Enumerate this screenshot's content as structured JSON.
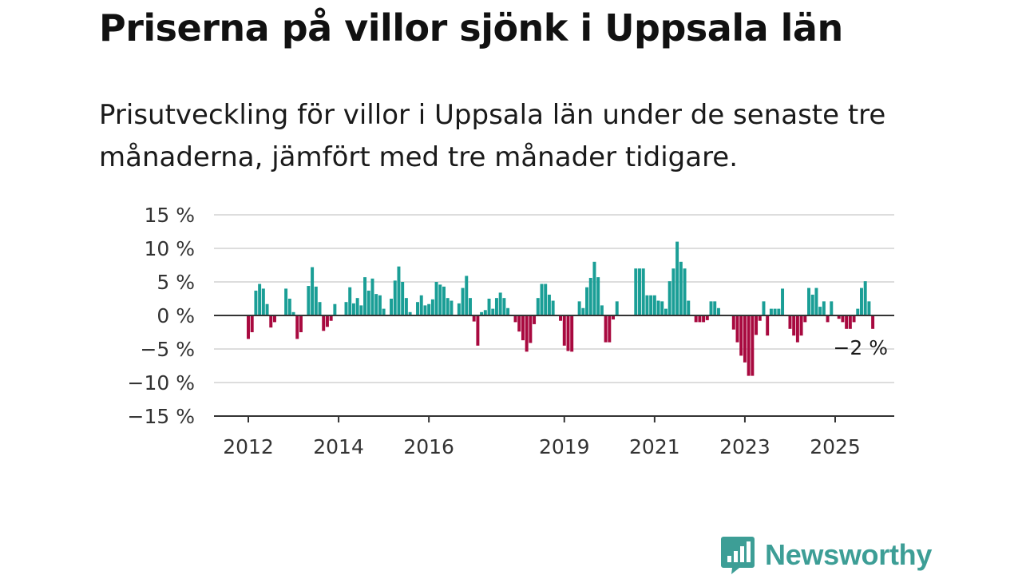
{
  "title": "Priserna på villor sjönk i Uppsala län",
  "subtitle": "Prisutveckling för villor i Uppsala län under de senaste tre månaderna, jämfört med tre månader tidigare.",
  "colors": {
    "positive": "#1a9e96",
    "negative": "#a8093f",
    "grid": "#dddddd",
    "axis": "#333333",
    "brand": "#3d9e96"
  },
  "brand": {
    "name": "Newsworthy",
    "icon": "newsworthy-logo-icon"
  },
  "chart_data": {
    "type": "bar",
    "title": "Priserna på villor sjönk i Uppsala län",
    "ylim": [
      -15,
      15
    ],
    "y_ticks": [
      15,
      10,
      5,
      0,
      -5,
      -10,
      -15
    ],
    "y_tick_labels": [
      "15 %",
      "10 %",
      "5 %",
      "0 %",
      "−5 %",
      "−10 %",
      "−15 %"
    ],
    "x_ticks": [
      2012,
      2014,
      2016,
      2019,
      2021,
      2023,
      2025
    ],
    "x_tick_labels": [
      "2012",
      "2014",
      "2016",
      "2019",
      "2021",
      "2023",
      "2025"
    ],
    "grid": true,
    "end_label": "−2 %",
    "start_year": 2012,
    "unit": "%",
    "values": [
      -3.5,
      -2.5,
      3.7,
      4.7,
      4.0,
      1.7,
      -1.8,
      -1.0,
      0,
      0,
      4.0,
      2.5,
      0.5,
      -3.5,
      -2.5,
      0,
      4.4,
      7.2,
      4.3,
      2.0,
      -2.3,
      -1.7,
      -0.8,
      1.7,
      0,
      0,
      2.0,
      4.2,
      1.8,
      2.6,
      1.5,
      5.7,
      3.7,
      5.5,
      3.2,
      3.0,
      1.0,
      0,
      2.5,
      5.2,
      7.3,
      5.0,
      2.6,
      0.5,
      0,
      2.0,
      3.0,
      1.5,
      1.7,
      2.4,
      5.0,
      4.6,
      4.3,
      2.6,
      2.2,
      0,
      1.8,
      4.1,
      5.9,
      2.6,
      -0.9,
      -4.5,
      0.5,
      0.8,
      2.5,
      1.0,
      2.6,
      3.4,
      2.6,
      1.1,
      0,
      -1.0,
      -2.4,
      -3.7,
      -5.4,
      -4.1,
      -1.3,
      2.6,
      4.7,
      4.7,
      3.1,
      2.2,
      0,
      -0.8,
      -4.5,
      -5.3,
      -5.4,
      0,
      2.1,
      1.1,
      4.2,
      5.6,
      8.0,
      5.7,
      1.5,
      -4.0,
      -4.0,
      -0.6,
      2.1,
      0,
      0,
      0,
      0,
      7.0,
      7.0,
      7.0,
      3.0,
      3.0,
      3.0,
      2.2,
      2.1,
      1.0,
      5.1,
      7.0,
      11.0,
      8.0,
      7.0,
      2.2,
      0,
      -1.0,
      -1.0,
      -1.0,
      -0.7,
      2.1,
      2.1,
      1.1,
      0,
      0,
      0,
      -2.1,
      -4.0,
      -6.0,
      -7.0,
      -9.0,
      -9.0,
      -2.9,
      -0.8,
      2.1,
      -3.0,
      1.0,
      1.0,
      1.0,
      4.0,
      0,
      -2.0,
      -3.0,
      -4.0,
      -3.0,
      -1.0,
      4.1,
      3.1,
      4.1,
      1.3,
      2.1,
      -1.0,
      2.1,
      0,
      -0.5,
      -1.0,
      -2.0,
      -2.0,
      -1.0,
      1.0,
      4.1,
      5.1,
      2.1,
      -2.0
    ]
  }
}
